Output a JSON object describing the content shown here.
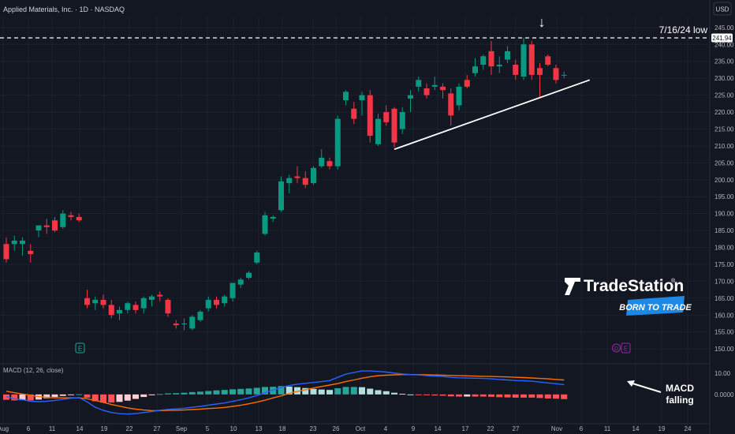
{
  "header": {
    "title": "Applied Materials, Inc. · 1D · NASDAQ",
    "currency_button": "USD"
  },
  "annotations": {
    "low_line_label": "7/16/24 low",
    "low_line_price": 241.94,
    "low_line_price_label": "241.94",
    "arrow_glyph": "↓",
    "macd_arrow_note_line1": "MACD",
    "macd_arrow_note_line2": "falling",
    "earnings_badge": "E",
    "dividend_badge": "D"
  },
  "brand": {
    "name": "TradeStation",
    "registered": "®",
    "tagline": "BORN TO TRADE"
  },
  "macd_panel": {
    "label": "MACD (12, 26, close)",
    "axis_labels": [
      "10.00",
      "0.0000"
    ]
  },
  "colors": {
    "background": "#131722",
    "grid": "#1c2030",
    "text": "#b2b5be",
    "up": "#089981",
    "down": "#f23645",
    "macd_line": "#2962ff",
    "signal_line": "#ff6d00",
    "hist_up_strong": "#26a69a",
    "hist_up_weak": "#b2dfdb",
    "hist_down_strong": "#ff5252",
    "hist_down_weak": "#ffcdd2"
  },
  "chart_data": {
    "type": "candlestick",
    "title": "Applied Materials, Inc. · 1D · NASDAQ",
    "y_ticks": [
      150,
      155,
      160,
      165,
      170,
      175,
      180,
      185,
      190,
      195,
      200,
      205,
      210,
      215,
      220,
      225,
      230,
      235,
      240,
      245
    ],
    "y_tick_labels": [
      "150.00",
      "155.00",
      "160.00",
      "165.00",
      "170.00",
      "175.00",
      "180.00",
      "185.00",
      "190.00",
      "195.00",
      "200.00",
      "205.00",
      "210.00",
      "215.00",
      "220.00",
      "225.00",
      "230.00",
      "235.00",
      "240.00",
      "245.00"
    ],
    "x_tick_labels": [
      "Aug",
      "6",
      "11",
      "14",
      "19",
      "22",
      "27",
      "Sep",
      "5",
      "10",
      "13",
      "18",
      "23",
      "26",
      "Oct",
      "4",
      "9",
      "14",
      "17",
      "22",
      "27",
      "Nov",
      "6",
      "11",
      "14",
      "19",
      "24"
    ],
    "ylim": [
      147,
      248
    ],
    "candles": [
      {
        "o": 181.0,
        "h": 183.0,
        "l": 175.5,
        "c": 176.5
      },
      {
        "o": 181.0,
        "h": 183.5,
        "l": 179.0,
        "c": 182.0
      },
      {
        "o": 181.0,
        "h": 183.0,
        "l": 177.5,
        "c": 182.0
      },
      {
        "o": 179.0,
        "h": 181.0,
        "l": 175.5,
        "c": 178.0
      },
      {
        "o": 185.0,
        "h": 186.5,
        "l": 183.0,
        "c": 186.5
      },
      {
        "o": 186.5,
        "h": 188.5,
        "l": 184.0,
        "c": 186.0
      },
      {
        "o": 188.0,
        "h": 189.0,
        "l": 184.5,
        "c": 185.0
      },
      {
        "o": 186.0,
        "h": 191.0,
        "l": 185.5,
        "c": 190.0
      },
      {
        "o": 189.5,
        "h": 190.5,
        "l": 188.0,
        "c": 189.0
      },
      {
        "o": 189.0,
        "h": 190.0,
        "l": 187.5,
        "c": 188.0
      },
      {
        "o": 165.0,
        "h": 167.5,
        "l": 162.0,
        "c": 163.0
      },
      {
        "o": 163.5,
        "h": 165.5,
        "l": 161.5,
        "c": 164.5
      },
      {
        "o": 164.5,
        "h": 166.0,
        "l": 162.0,
        "c": 163.0
      },
      {
        "o": 163.0,
        "h": 164.5,
        "l": 159.0,
        "c": 160.0
      },
      {
        "o": 160.5,
        "h": 162.5,
        "l": 158.5,
        "c": 161.5
      },
      {
        "o": 161.5,
        "h": 164.0,
        "l": 160.5,
        "c": 163.5
      },
      {
        "o": 163.0,
        "h": 164.0,
        "l": 160.5,
        "c": 161.5
      },
      {
        "o": 162.0,
        "h": 165.5,
        "l": 160.5,
        "c": 165.0
      },
      {
        "o": 164.5,
        "h": 166.0,
        "l": 162.5,
        "c": 165.5
      },
      {
        "o": 166.0,
        "h": 167.0,
        "l": 164.0,
        "c": 165.5
      },
      {
        "o": 164.5,
        "h": 165.0,
        "l": 159.5,
        "c": 160.5
      },
      {
        "o": 157.5,
        "h": 158.5,
        "l": 156.0,
        "c": 157.0
      },
      {
        "o": 157.5,
        "h": 159.0,
        "l": 155.5,
        "c": 157.5
      },
      {
        "o": 156.0,
        "h": 160.0,
        "l": 155.5,
        "c": 159.5
      },
      {
        "o": 158.5,
        "h": 161.5,
        "l": 158.0,
        "c": 161.0
      },
      {
        "o": 162.0,
        "h": 165.5,
        "l": 161.0,
        "c": 164.5
      },
      {
        "o": 164.5,
        "h": 165.5,
        "l": 162.0,
        "c": 163.0
      },
      {
        "o": 163.5,
        "h": 166.0,
        "l": 162.5,
        "c": 165.5
      },
      {
        "o": 165.0,
        "h": 169.5,
        "l": 164.0,
        "c": 169.5
      },
      {
        "o": 169.0,
        "h": 171.0,
        "l": 168.0,
        "c": 170.5
      },
      {
        "o": 171.0,
        "h": 173.0,
        "l": 170.5,
        "c": 172.5
      },
      {
        "o": 175.5,
        "h": 179.0,
        "l": 175.0,
        "c": 178.5
      },
      {
        "o": 184.0,
        "h": 190.5,
        "l": 183.5,
        "c": 189.5
      },
      {
        "o": 188.5,
        "h": 189.5,
        "l": 187.5,
        "c": 189.0
      },
      {
        "o": 191.0,
        "h": 201.0,
        "l": 190.5,
        "c": 199.5
      },
      {
        "o": 199.0,
        "h": 201.5,
        "l": 196.0,
        "c": 200.5
      },
      {
        "o": 201.0,
        "h": 204.0,
        "l": 199.0,
        "c": 200.5
      },
      {
        "o": 200.5,
        "h": 202.5,
        "l": 197.5,
        "c": 198.5
      },
      {
        "o": 199.0,
        "h": 204.0,
        "l": 198.5,
        "c": 203.5
      },
      {
        "o": 204.0,
        "h": 209.0,
        "l": 203.5,
        "c": 206.5
      },
      {
        "o": 205.5,
        "h": 206.5,
        "l": 203.0,
        "c": 204.0
      },
      {
        "o": 204.0,
        "h": 219.0,
        "l": 203.0,
        "c": 218.0
      },
      {
        "o": 223.5,
        "h": 226.5,
        "l": 222.0,
        "c": 226.0
      },
      {
        "o": 221.0,
        "h": 223.0,
        "l": 216.5,
        "c": 218.0
      },
      {
        "o": 223.5,
        "h": 226.0,
        "l": 219.0,
        "c": 225.0
      },
      {
        "o": 225.0,
        "h": 226.5,
        "l": 211.0,
        "c": 213.0
      },
      {
        "o": 210.5,
        "h": 219.5,
        "l": 210.0,
        "c": 218.0
      },
      {
        "o": 220.0,
        "h": 222.0,
        "l": 216.0,
        "c": 217.0
      },
      {
        "o": 221.0,
        "h": 221.5,
        "l": 209.5,
        "c": 211.0
      },
      {
        "o": 215.0,
        "h": 221.5,
        "l": 213.5,
        "c": 220.0
      },
      {
        "o": 224.0,
        "h": 226.5,
        "l": 220.0,
        "c": 225.0
      },
      {
        "o": 227.5,
        "h": 230.5,
        "l": 226.0,
        "c": 229.5
      },
      {
        "o": 227.0,
        "h": 228.5,
        "l": 224.0,
        "c": 225.0
      },
      {
        "o": 227.5,
        "h": 230.5,
        "l": 226.5,
        "c": 228.0
      },
      {
        "o": 227.5,
        "h": 228.5,
        "l": 224.0,
        "c": 226.5
      },
      {
        "o": 225.5,
        "h": 227.0,
        "l": 216.0,
        "c": 219.0
      },
      {
        "o": 222.0,
        "h": 228.5,
        "l": 220.5,
        "c": 227.5
      },
      {
        "o": 229.5,
        "h": 231.0,
        "l": 227.0,
        "c": 227.5
      },
      {
        "o": 231.5,
        "h": 236.0,
        "l": 230.5,
        "c": 233.5
      },
      {
        "o": 234.0,
        "h": 237.0,
        "l": 232.5,
        "c": 236.5
      },
      {
        "o": 238.0,
        "h": 241.0,
        "l": 231.0,
        "c": 233.5
      },
      {
        "o": 233.5,
        "h": 236.5,
        "l": 231.5,
        "c": 234.0
      },
      {
        "o": 235.5,
        "h": 239.5,
        "l": 234.5,
        "c": 238.0
      },
      {
        "o": 234.0,
        "h": 235.5,
        "l": 229.5,
        "c": 231.0
      },
      {
        "o": 230.5,
        "h": 242.0,
        "l": 229.5,
        "c": 240.0
      },
      {
        "o": 240.0,
        "h": 241.0,
        "l": 229.5,
        "c": 231.0
      },
      {
        "o": 233.0,
        "h": 234.5,
        "l": 224.0,
        "c": 231.0
      },
      {
        "o": 236.5,
        "h": 237.0,
        "l": 233.5,
        "c": 234.0
      },
      {
        "o": 233.0,
        "h": 234.0,
        "l": 228.5,
        "c": 229.5
      },
      {
        "o": 231.0,
        "h": 232.0,
        "l": 230.0,
        "c": 231.0
      }
    ],
    "macd": {
      "macd_line": [
        -1.0,
        -2.0,
        -2.5,
        -3.2,
        -3.4,
        -3.2,
        -2.8,
        -2.3,
        -1.8,
        -1.5,
        -3.5,
        -6.0,
        -7.5,
        -8.5,
        -9.0,
        -9.2,
        -9.0,
        -8.5,
        -8.0,
        -7.4,
        -7.0,
        -6.8,
        -6.5,
        -6.0,
        -5.6,
        -5.0,
        -4.5,
        -4.0,
        -3.2,
        -2.5,
        -1.6,
        -0.5,
        0.8,
        2.0,
        3.2,
        4.2,
        4.8,
        5.2,
        5.6,
        6.0,
        6.5,
        8.0,
        9.5,
        10.3,
        11.0,
        11.0,
        10.8,
        10.5,
        10.0,
        9.6,
        9.3,
        9.2,
        8.8,
        8.6,
        8.4,
        8.0,
        7.8,
        7.7,
        7.6,
        7.5,
        7.3,
        7.0,
        6.8,
        6.5,
        6.4,
        6.2,
        5.8,
        5.4,
        5.0,
        4.6
      ],
      "signal_line": [
        1.5,
        0.8,
        0.2,
        -0.4,
        -1.0,
        -1.4,
        -1.6,
        -1.6,
        -1.6,
        -1.6,
        -2.0,
        -2.8,
        -3.7,
        -4.7,
        -5.5,
        -6.3,
        -6.9,
        -7.3,
        -7.6,
        -7.6,
        -7.5,
        -7.4,
        -7.3,
        -7.1,
        -6.9,
        -6.6,
        -6.4,
        -6.1,
        -5.6,
        -5.1,
        -4.4,
        -3.6,
        -2.7,
        -1.6,
        -0.7,
        0.5,
        1.4,
        2.2,
        3.0,
        3.7,
        4.4,
        5.1,
        6.0,
        6.8,
        7.6,
        8.3,
        8.8,
        9.0,
        9.2,
        9.3,
        9.3,
        9.3,
        9.2,
        9.1,
        9.0,
        8.9,
        8.8,
        8.7,
        8.6,
        8.5,
        8.4,
        8.3,
        8.2,
        8.0,
        7.9,
        7.7,
        7.5,
        7.3,
        7.0,
        6.8
      ]
    },
    "macd_ylim": [
      -13,
      14
    ],
    "annotation_lines": [
      {
        "type": "dashed_horizontal",
        "price": 241.94
      },
      {
        "type": "trendline",
        "from_index": 48,
        "from_price": 209.0,
        "to_index": 71,
        "to_price": 229.5
      }
    ]
  }
}
